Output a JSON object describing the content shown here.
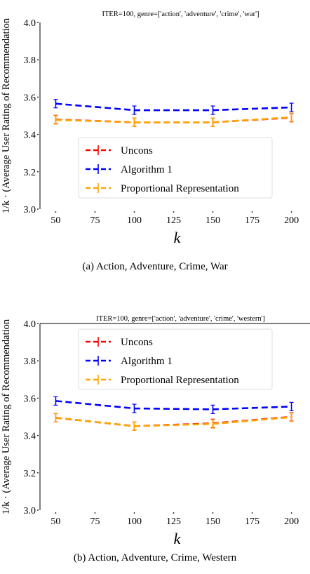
{
  "chart_data": [
    {
      "type": "line",
      "title": "ITER=100, genre=['action', 'adventure', 'crime', 'war']",
      "xlabel": "k",
      "ylabel": "(Average User Rating of Recommendation",
      "ylabel_prefix": "1/k ·",
      "caption": "(a)  Action, Adventure, Crime, War",
      "x": [
        50,
        100,
        150,
        200
      ],
      "xticks": [
        "50",
        "75",
        "100",
        "125",
        "150",
        "175",
        "200"
      ],
      "yticks": [
        "3.0",
        "3.2",
        "3.4",
        "3.6",
        "3.8",
        "4.0"
      ],
      "xlim": [
        40,
        210
      ],
      "ylim": [
        3.0,
        4.0
      ],
      "legend_position": "center",
      "series": [
        {
          "name": "Uncons",
          "values": [
            3.48,
            3.465,
            3.465,
            3.49
          ],
          "color": "#ff0000"
        },
        {
          "name": "Algorithm 1",
          "values": [
            3.565,
            3.53,
            3.53,
            3.545
          ],
          "color": "#0000ff"
        },
        {
          "name": "Proportional Representation",
          "values": [
            3.478,
            3.465,
            3.465,
            3.492
          ],
          "color": "#ffa500"
        }
      ]
    },
    {
      "type": "line",
      "title": "ITER=100, genre=['action', 'adventure', 'crime', 'western']",
      "xlabel": "k",
      "ylabel": "(Average User Rating of Recommendation",
      "ylabel_prefix": "1/k ·",
      "caption": "(b)  Action, Adventure, Crime, Western",
      "x": [
        50,
        100,
        150,
        200
      ],
      "xticks": [
        "50",
        "75",
        "100",
        "125",
        "150",
        "175",
        "200"
      ],
      "yticks": [
        "3.0",
        "3.2",
        "3.4",
        "3.6",
        "3.8",
        "4.0"
      ],
      "xlim": [
        40,
        210
      ],
      "ylim": [
        3.0,
        4.0
      ],
      "legend_position": "top",
      "series": [
        {
          "name": "Uncons",
          "values": [
            3.495,
            3.45,
            3.465,
            3.5
          ],
          "color": "#ff0000"
        },
        {
          "name": "Algorithm 1",
          "values": [
            3.585,
            3.545,
            3.54,
            3.555
          ],
          "color": "#0000ff"
        },
        {
          "name": "Proportional Representation",
          "values": [
            3.495,
            3.45,
            3.462,
            3.498
          ],
          "color": "#ffa500"
        }
      ]
    }
  ]
}
